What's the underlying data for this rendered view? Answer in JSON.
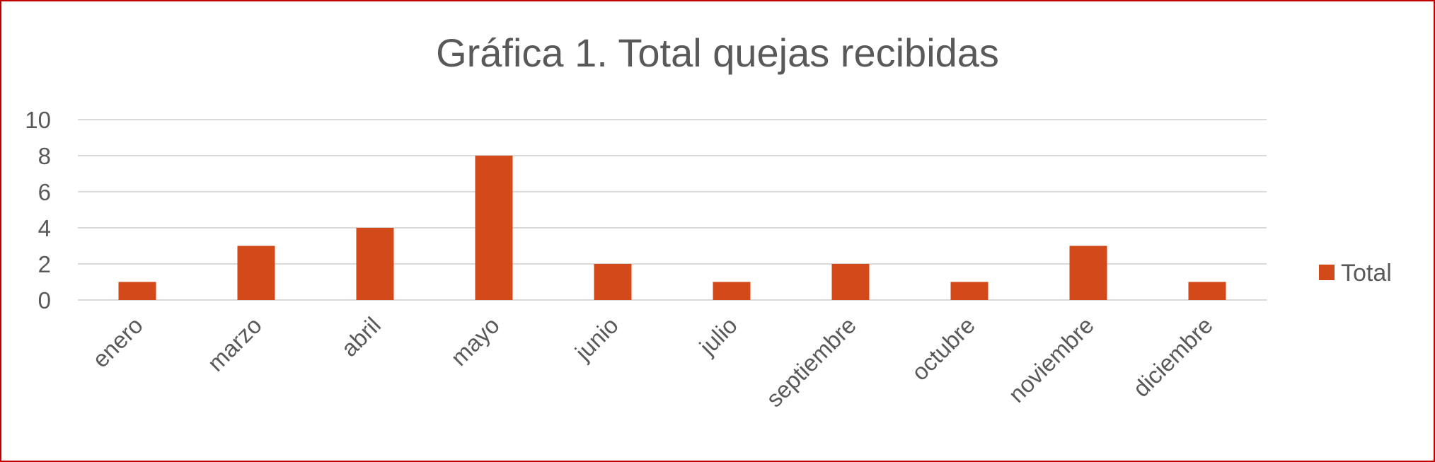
{
  "chart_data": {
    "type": "bar",
    "title": "Gráfica 1. Total quejas recibidas",
    "xlabel": "",
    "ylabel": "",
    "categories": [
      "enero",
      "marzo",
      "abril",
      "mayo",
      "junio",
      "julio",
      "septiembre",
      "octubre",
      "noviembre",
      "diciembre"
    ],
    "series": [
      {
        "name": "Total",
        "values": [
          1,
          3,
          4,
          8,
          2,
          1,
          2,
          1,
          3,
          1
        ],
        "color": "#d24a19"
      }
    ],
    "ylim": [
      0,
      10
    ],
    "yticks": [
      0,
      2,
      4,
      6,
      8,
      10
    ],
    "grid": true,
    "legend_position": "right",
    "colors": {
      "bar": "#d24a19",
      "grid": "#d9d9d9",
      "text": "#595959",
      "border": "#c00000"
    }
  }
}
